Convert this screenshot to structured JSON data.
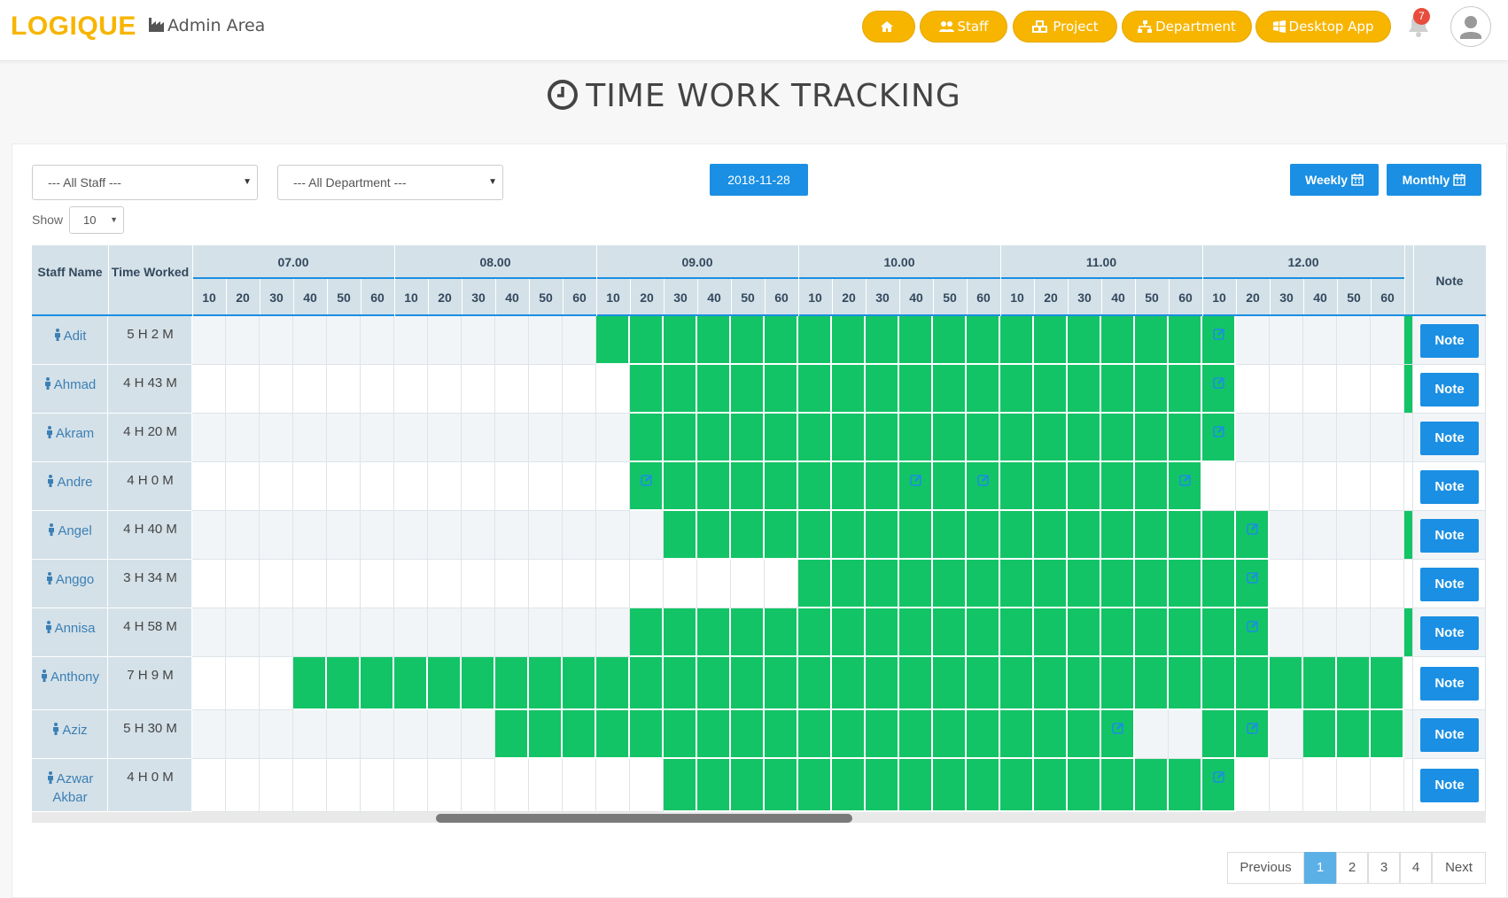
{
  "brand": {
    "logo": "LOGIQUE",
    "area": "Admin Area"
  },
  "nav": {
    "home_icon": "home-icon",
    "items": [
      {
        "label": "Staff",
        "icon": "users-icon"
      },
      {
        "label": "Project",
        "icon": "cubes-icon"
      },
      {
        "label": "Department",
        "icon": "sitemap-icon"
      },
      {
        "label": "Desktop App",
        "icon": "windows-icon"
      }
    ],
    "notification_count": "7"
  },
  "page": {
    "title": "TIME WORK TRACKING"
  },
  "filters": {
    "staff": "--- All Staff ---",
    "department": "--- All Department ---",
    "date": "2018-11-28",
    "show_label": "Show",
    "show_value": "10",
    "weekly": "Weekly",
    "monthly": "Monthly"
  },
  "table": {
    "col_staff": "Staff Name",
    "col_time": "Time Worked",
    "col_note": "Note",
    "hours": [
      "07.00",
      "08.00",
      "09.00",
      "10.00",
      "11.00",
      "12.00"
    ],
    "minutes": [
      "10",
      "20",
      "30",
      "40",
      "50",
      "60"
    ],
    "note_button": "Note",
    "rows": [
      {
        "name": "Adit",
        "time": "5 H 2 M",
        "start": 12,
        "end": 31,
        "gaps": [],
        "icons": [
          30
        ],
        "tail": true
      },
      {
        "name": "Ahmad",
        "time": "4 H 43 M",
        "start": 13,
        "end": 31,
        "gaps": [],
        "icons": [
          30
        ],
        "tail": true
      },
      {
        "name": "Akram",
        "time": "4 H 20 M",
        "start": 13,
        "end": 31,
        "gaps": [],
        "icons": [
          30
        ],
        "tail": false
      },
      {
        "name": "Andre",
        "time": "4 H 0 M",
        "start": 13,
        "end": 30,
        "gaps": [],
        "icons": [
          13,
          21,
          23,
          29
        ],
        "tail": false
      },
      {
        "name": "Angel",
        "time": "4 H 40 M",
        "start": 14,
        "end": 32,
        "gaps": [],
        "icons": [
          31
        ],
        "tail": true
      },
      {
        "name": "Anggo",
        "time": "3 H 34 M",
        "start": 18,
        "end": 32,
        "gaps": [],
        "icons": [
          31
        ],
        "tail": false
      },
      {
        "name": "Annisa",
        "time": "4 H 58 M",
        "start": 13,
        "end": 32,
        "gaps": [],
        "icons": [
          31
        ],
        "tail": true
      },
      {
        "name": "Anthony",
        "time": "7 H 9 M",
        "start": 3,
        "end": 36,
        "gaps": [],
        "icons": [],
        "tail": false
      },
      {
        "name": "Aziz",
        "time": "5 H 30 M",
        "start": 9,
        "end": 36,
        "gaps": [
          28,
          29,
          32
        ],
        "icons": [
          27,
          31
        ],
        "tail": false
      },
      {
        "name": "Azwar Akbar",
        "time": "4 H 0 M",
        "start": 14,
        "end": 31,
        "gaps": [],
        "icons": [
          30
        ],
        "tail": false
      }
    ]
  },
  "pagination": {
    "previous": "Previous",
    "pages": [
      "1",
      "2",
      "3",
      "4"
    ],
    "next": "Next",
    "active": "1"
  },
  "colors": {
    "brand": "#f7b500",
    "accent": "#1a8fe3",
    "worked": "#13c466"
  }
}
